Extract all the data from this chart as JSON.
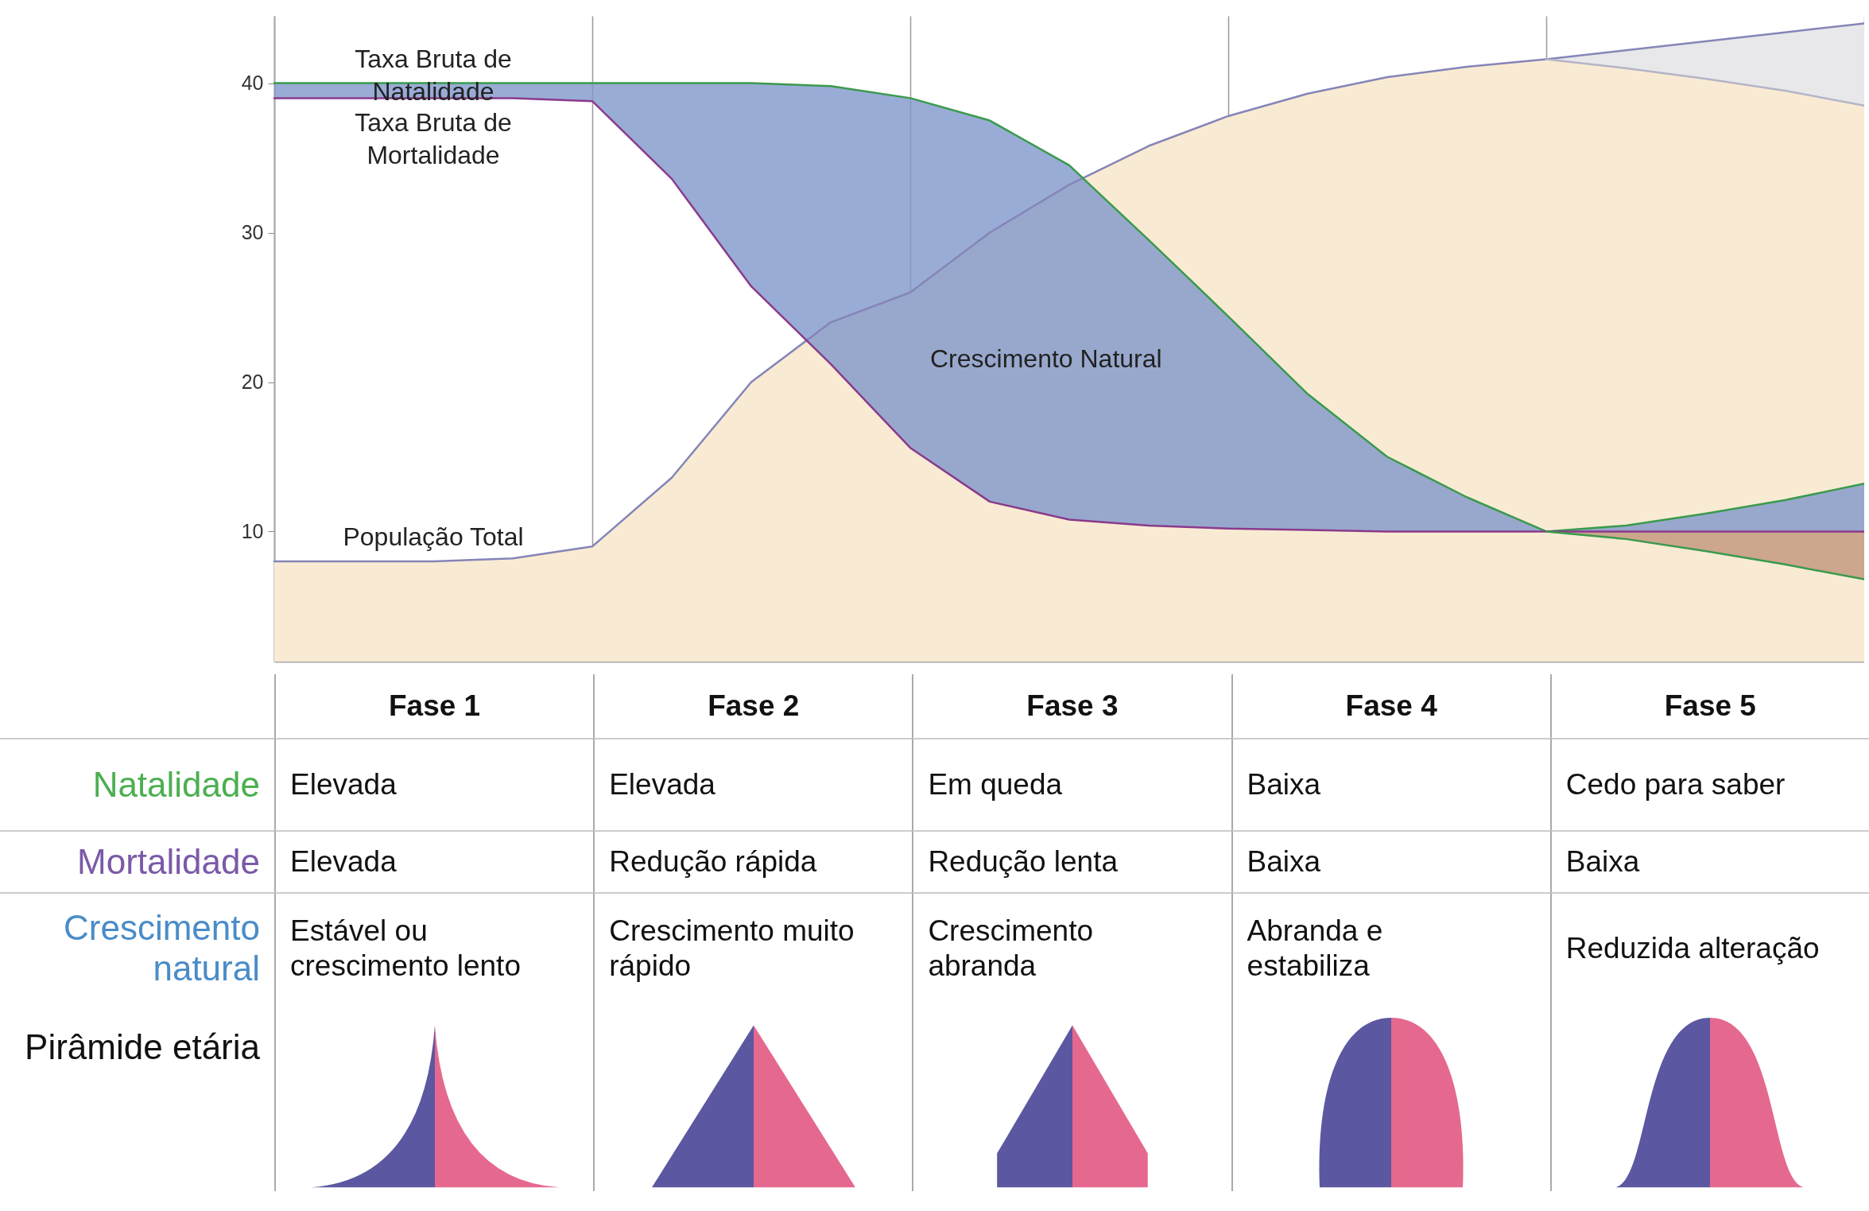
{
  "chart_data": {
    "type": "line",
    "categories": [
      null,
      null,
      null,
      null,
      null,
      null,
      null,
      null,
      null,
      null,
      null,
      null,
      null,
      null,
      null,
      null,
      null,
      null,
      null,
      null,
      null
    ],
    "ylim": [
      1.3,
      44.5
    ],
    "yticks": [
      10,
      20,
      30,
      40
    ],
    "grid": "x",
    "tick_labels": "y",
    "series": [
      {
        "name": "População Total",
        "color": "#8585b8",
        "values": [
          8,
          8,
          8,
          8.2,
          9,
          13.6,
          20,
          24,
          26,
          30,
          33.2,
          35.8,
          37.8,
          39.3,
          40.4,
          41.1,
          41.6,
          42.2,
          42.8,
          43.4,
          44
        ],
        "lower": [
          1.3,
          1.3,
          1.3,
          1.3,
          1.3,
          1.3,
          1.3,
          1.3,
          1.3,
          1.3,
          1.3,
          1.3,
          1.3,
          1.3,
          1.3,
          1.3,
          1.3,
          1.3,
          1.3,
          1.3,
          1.3
        ],
        "upper": [
          8,
          8,
          8,
          8.2,
          9,
          13.6,
          20,
          24,
          26,
          30,
          33.2,
          35.8,
          37.8,
          39.3,
          40.4,
          41.1,
          41.6,
          41,
          40.3,
          39.5,
          38.5
        ]
      },
      {
        "color": "#b4b4c8",
        "values": [
          null,
          null,
          null,
          null,
          null,
          null,
          null,
          null,
          null,
          null,
          null,
          null,
          null,
          null,
          null,
          null,
          41.6,
          41,
          40.3,
          39.5,
          38.5
        ],
        "lower": [
          null,
          null,
          null,
          null,
          null,
          null,
          null,
          null,
          null,
          null,
          null,
          null,
          null,
          null,
          null,
          null,
          41.6,
          41,
          40.3,
          39.5,
          38.5
        ],
        "upper": [
          null,
          null,
          null,
          null,
          null,
          null,
          null,
          null,
          null,
          null,
          null,
          null,
          null,
          null,
          null,
          null,
          41.6,
          42.2,
          42.8,
          43.4,
          44
        ]
      },
      {
        "name": "Taxa Bruta de Natalidade",
        "color": "#3a9a4c",
        "values": [
          40,
          40,
          40,
          40,
          40,
          40,
          40,
          39.8,
          39,
          37.5,
          34.5,
          29.5,
          24.4,
          19.2,
          15,
          12.3,
          10,
          10.4,
          11.2,
          12.1,
          13.2
        ],
        "lower": [
          39,
          39,
          39,
          39,
          38.8,
          33.6,
          26.4,
          21.2,
          15.6,
          12,
          10.8,
          10.4,
          10.2,
          10.1,
          10,
          10,
          10,
          10,
          10,
          10,
          10
        ],
        "upper": [
          40,
          40,
          40,
          40,
          40,
          40,
          40,
          39.8,
          39,
          37.5,
          34.5,
          29.5,
          24.4,
          19.2,
          15,
          12.3,
          10,
          10.4,
          11.2,
          12.1,
          13.2
        ]
      },
      {
        "name": "Taxa Bruta de Mortalidade",
        "color": "#8a3a8c",
        "values": [
          39,
          39,
          39,
          39,
          38.8,
          33.6,
          26.4,
          21.2,
          15.6,
          12,
          10.8,
          10.4,
          10.2,
          10.1,
          10,
          10,
          10,
          10,
          10,
          10,
          10
        ]
      },
      {
        "color": "#3a9a4c",
        "values": [
          null,
          null,
          null,
          null,
          null,
          null,
          null,
          null,
          null,
          null,
          null,
          null,
          null,
          null,
          null,
          null,
          10,
          9.5,
          8.7,
          7.8,
          6.8
        ],
        "lower": [
          null,
          null,
          null,
          null,
          null,
          null,
          null,
          null,
          null,
          null,
          null,
          null,
          null,
          null,
          null,
          null,
          10,
          9.5,
          8.7,
          7.8,
          6.8
        ],
        "upper": [
          null,
          null,
          null,
          null,
          null,
          null,
          null,
          null,
          null,
          null,
          null,
          null,
          null,
          null,
          null,
          null,
          10,
          10,
          10,
          10,
          10
        ]
      }
    ],
    "annotations": [
      "Crescimento Natural",
      "Fase 1",
      "Fase 2",
      "Fase 3",
      "Fase 4",
      "Fase 5",
      "Natalidade",
      "Elevada",
      "Elevada",
      "Em queda",
      "Baixa",
      "Cedo para saber",
      "Mortalidade",
      "Elevada",
      "Redução rápida",
      "Redução lenta",
      "Baixa",
      "Baixa",
      "Crescimento natural",
      "Estável ou crescimento lento",
      "Crescimento muito rápido",
      "Crescimento abranda",
      "Abranda e estabiliza",
      "Reduzida alteração",
      "Pirâmide etária"
    ]
  }
}
